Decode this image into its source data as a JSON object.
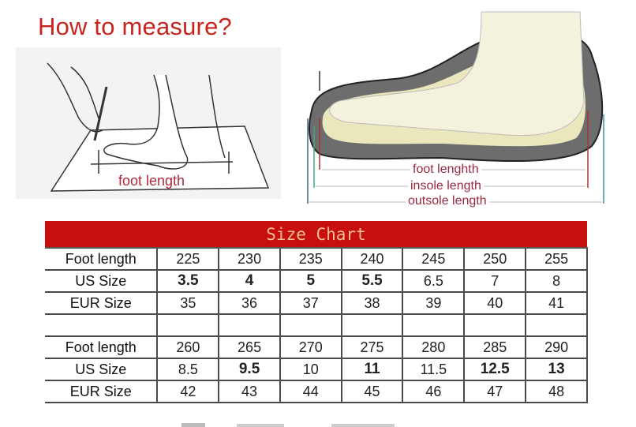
{
  "title": "How to measure?",
  "illustration": {
    "left_label": "foot length",
    "labels": [
      "foot lenghth",
      "insole length",
      "outsole length"
    ]
  },
  "size_chart": {
    "title": "Size Chart",
    "blocks": [
      {
        "rows": [
          {
            "label": "Foot length",
            "values": [
              "225",
              "230",
              "235",
              "240",
              "245",
              "250",
              "255"
            ]
          },
          {
            "label": "US Size",
            "values": [
              "3.5",
              "4",
              "5",
              "5.5",
              "6.5",
              "7",
              "8"
            ]
          },
          {
            "label": "EUR Size",
            "values": [
              "35",
              "36",
              "37",
              "38",
              "39",
              "40",
              "41"
            ]
          }
        ]
      },
      {
        "rows": [
          {
            "label": "Foot length",
            "values": [
              "260",
              "265",
              "270",
              "275",
              "280",
              "285",
              "290"
            ]
          },
          {
            "label": "US Size",
            "values": [
              "8.5",
              "9.5",
              "10",
              "11",
              "11.5",
              "12.5",
              "13"
            ]
          },
          {
            "label": "EUR Size",
            "values": [
              "42",
              "43",
              "44",
              "45",
              "46",
              "47",
              "48"
            ]
          }
        ]
      }
    ]
  }
}
